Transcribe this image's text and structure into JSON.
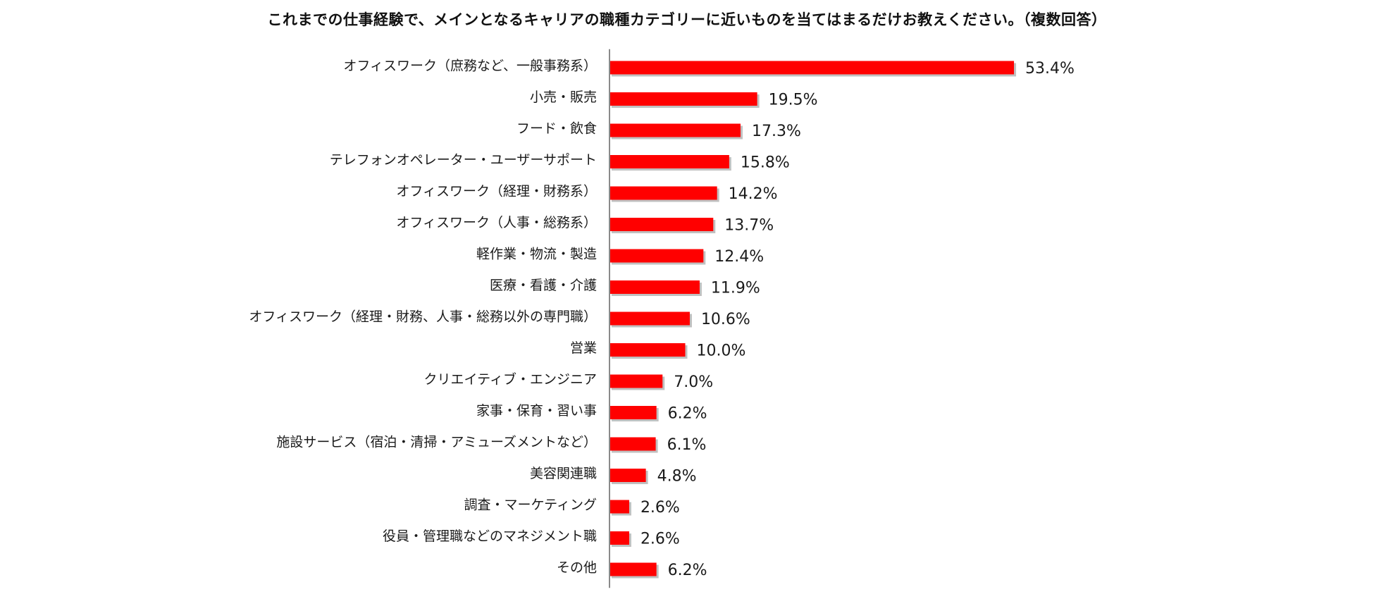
{
  "colors": {
    "bar": "#ff0000",
    "bar_shadow": "#8c8c8c",
    "axis": "#8a8a8a",
    "background": "#ffffff"
  },
  "chart_data": {
    "type": "bar",
    "orientation": "horizontal",
    "title": "これまでの仕事経験で、メインとなるキャリアの職種カテゴリーに近いものを当てはまるだけお教えください。（複数回答）",
    "xlabel": "",
    "ylabel": "",
    "xlim": [
      0,
      60
    ],
    "grid": false,
    "legend": "none",
    "value_format": "{v}%",
    "categories": [
      "オフィスワーク（庶務など、一般事務系）",
      "小売・販売",
      "フード・飲食",
      "テレフォンオペレーター・ユーザーサポート",
      "オフィスワーク（経理・財務系）",
      "オフィスワーク（人事・総務系）",
      "軽作業・物流・製造",
      "医療・看護・介護",
      "オフィスワーク（経理・財務、人事・総務以外の専門職）",
      "営業",
      "クリエイティブ・エンジニア",
      "家事・保育・習い事",
      "施設サービス（宿泊・清掃・アミューズメントなど）",
      "美容関連職",
      "調査・マーケティング",
      "役員・管理職などのマネジメント職",
      "その他"
    ],
    "values": [
      53.4,
      19.5,
      17.3,
      15.8,
      14.2,
      13.7,
      12.4,
      11.9,
      10.6,
      10.0,
      7.0,
      6.2,
      6.1,
      4.8,
      2.6,
      2.6,
      6.2
    ],
    "value_labels": [
      "53.4%",
      "19.5%",
      "17.3%",
      "15.8%",
      "14.2%",
      "13.7%",
      "12.4%",
      "11.9%",
      "10.6%",
      "10.0%",
      "7.0%",
      "6.2%",
      "6.1%",
      "4.8%",
      "2.6%",
      "2.6%",
      "6.2%"
    ]
  }
}
